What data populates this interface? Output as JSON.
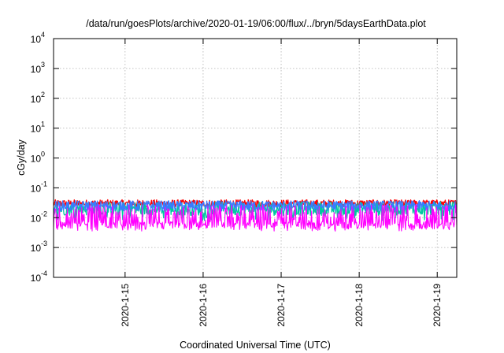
{
  "chart_data": {
    "type": "line",
    "title": "/data/run/goesPlots/archive/2020-01-19/06:00/flux/../bryn/5daysEarthData.plot",
    "xlabel": "Coordinated Universal Time (UTC)",
    "ylabel": "cGy/day",
    "yscale": "log",
    "ylim": [
      0.0001,
      10000
    ],
    "y_ticks": [
      {
        "base": "10",
        "exp": "-4",
        "value": 0.0001
      },
      {
        "base": "10",
        "exp": "-3",
        "value": 0.001
      },
      {
        "base": "10",
        "exp": "-2",
        "value": 0.01
      },
      {
        "base": "10",
        "exp": "-1",
        "value": 0.1
      },
      {
        "base": "10",
        "exp": "0",
        "value": 1
      },
      {
        "base": "10",
        "exp": "1",
        "value": 10
      },
      {
        "base": "10",
        "exp": "2",
        "value": 100
      },
      {
        "base": "10",
        "exp": "3",
        "value": 1000
      },
      {
        "base": "10",
        "exp": "4",
        "value": 10000
      }
    ],
    "xlim": [
      "2020-01-14 02:00",
      "2020-01-19 06:00"
    ],
    "x_ticks": [
      {
        "label": "2020-1-15",
        "value": "2020-01-15 00:00"
      },
      {
        "label": "2020-1-16",
        "value": "2020-01-16 00:00"
      },
      {
        "label": "2020-1-17",
        "value": "2020-01-17 00:00"
      },
      {
        "label": "2020-1-18",
        "value": "2020-01-18 00:00"
      },
      {
        "label": "2020-1-19",
        "value": "2020-01-19 00:00"
      }
    ],
    "grid": true,
    "legend": "none",
    "series": [
      {
        "color": "#ff0000",
        "typical": 0.03,
        "low": 0.022,
        "high": 0.045,
        "dips_to": null
      },
      {
        "color": "#00c8a0",
        "typical": 0.02,
        "low": 0.008,
        "high": 0.03,
        "dips_to": 0.008
      },
      {
        "color": "#3a7bff",
        "typical": 0.025,
        "low": 0.015,
        "high": 0.04,
        "dips_to": null
      },
      {
        "color": "#ff00ff",
        "typical": 0.006,
        "low": 0.0035,
        "high": 0.028,
        "dips_to": null
      }
    ]
  }
}
